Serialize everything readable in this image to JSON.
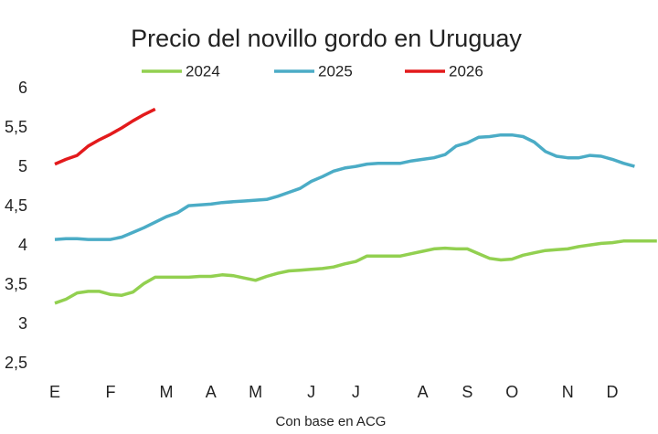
{
  "chart_data": {
    "type": "line",
    "title": "Precio del novillo gordo en Uruguay",
    "x_label": "Con base en ACG",
    "categories": [
      "E",
      null,
      null,
      null,
      null,
      "F",
      null,
      null,
      null,
      null,
      "M",
      null,
      null,
      null,
      "A",
      null,
      null,
      null,
      "M",
      null,
      null,
      null,
      null,
      "J",
      null,
      null,
      null,
      "J",
      null,
      null,
      null,
      null,
      null,
      "A",
      null,
      null,
      null,
      "S",
      null,
      null,
      null,
      "O",
      null,
      null,
      null,
      null,
      "N",
      null,
      null,
      null,
      "D",
      null,
      null,
      null,
      null
    ],
    "series": [
      {
        "name": "2024",
        "color": "#92d050",
        "values": [
          3.27,
          3.32,
          3.4,
          3.42,
          3.42,
          3.38,
          3.37,
          3.41,
          3.52,
          3.6,
          3.6,
          3.6,
          3.6,
          3.61,
          3.61,
          3.63,
          3.62,
          3.59,
          3.56,
          3.61,
          3.65,
          3.68,
          3.69,
          3.7,
          3.71,
          3.73,
          3.77,
          3.8,
          3.87,
          3.87,
          3.87,
          3.87,
          3.9,
          3.93,
          3.96,
          3.97,
          3.96,
          3.96,
          3.9,
          3.84,
          3.82,
          3.83,
          3.88,
          3.91,
          3.94,
          3.95,
          3.96,
          3.99,
          4.01,
          4.03,
          4.04,
          4.06,
          4.06,
          4.06,
          4.06
        ]
      },
      {
        "name": "2025",
        "color": "#4bacc6",
        "values": [
          4.08,
          4.09,
          4.09,
          4.08,
          4.08,
          4.08,
          4.11,
          4.17,
          4.23,
          4.3,
          4.37,
          4.42,
          4.51,
          4.52,
          4.53,
          4.55,
          4.56,
          4.57,
          4.58,
          4.59,
          4.63,
          4.68,
          4.73,
          4.82,
          4.88,
          4.95,
          4.99,
          5.01,
          5.04,
          5.05,
          5.05,
          5.05,
          5.08,
          5.1,
          5.12,
          5.16,
          5.27,
          5.31,
          5.38,
          5.39,
          5.41,
          5.41,
          5.39,
          5.32,
          5.2,
          5.14,
          5.12,
          5.12,
          5.15,
          5.14,
          5.1,
          5.05,
          5.01,
          null,
          null
        ]
      },
      {
        "name": "2026",
        "color": "#e31a1c",
        "values": [
          5.04,
          5.1,
          5.15,
          5.27,
          5.35,
          5.42,
          5.5,
          5.59,
          5.67,
          5.74,
          null,
          null,
          null,
          null,
          null,
          null,
          null,
          null,
          null,
          null,
          null,
          null,
          null,
          null,
          null,
          null,
          null,
          null,
          null,
          null,
          null,
          null,
          null,
          null,
          null,
          null,
          null,
          null,
          null,
          null,
          null,
          null,
          null,
          null,
          null,
          null,
          null,
          null,
          null,
          null,
          null,
          null,
          null,
          null,
          null
        ]
      }
    ],
    "ylim": [
      2.5,
      6
    ],
    "yticks": [
      {
        "value": 2.5,
        "label": "2,5"
      },
      3,
      {
        "value": 3.5,
        "label": "3,5"
      },
      4,
      {
        "value": 4.5,
        "label": "4,5"
      },
      5,
      {
        "value": 5.5,
        "label": "5,5"
      },
      6
    ],
    "legend": "top"
  }
}
